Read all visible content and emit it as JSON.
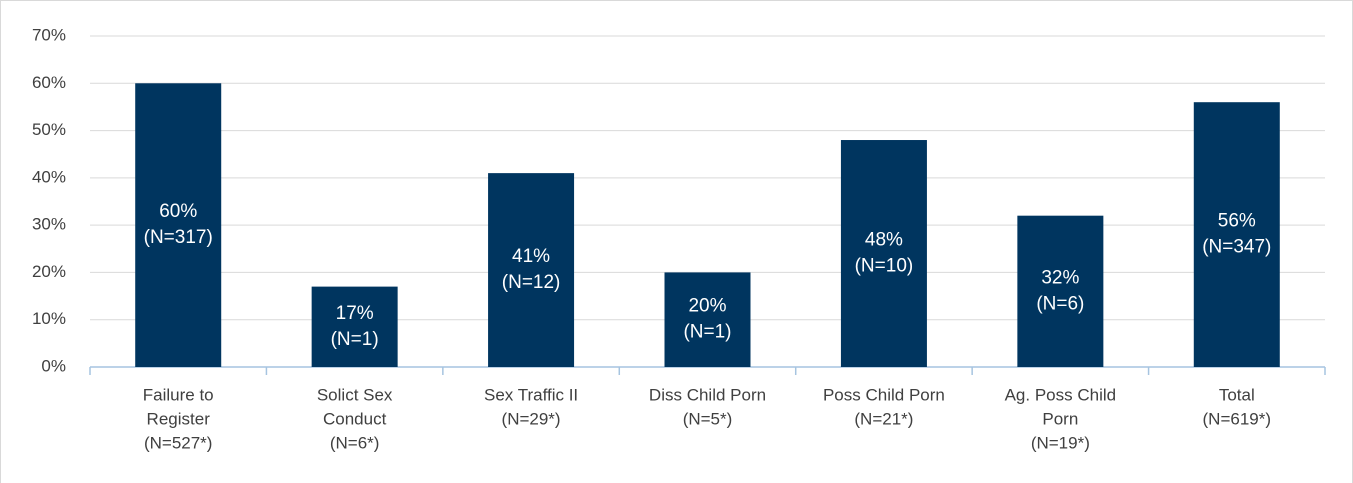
{
  "chart_data": {
    "type": "bar",
    "categories": [
      [
        "Failure to",
        "Register",
        "(N=527*)"
      ],
      [
        "Solict Sex",
        "Conduct",
        "(N=6*)"
      ],
      [
        "Sex Traffic II",
        "(N=29*)"
      ],
      [
        "Diss Child Porn",
        "(N=5*)"
      ],
      [
        "Poss Child Porn",
        "(N=21*)"
      ],
      [
        "Ag. Poss Child",
        "Porn",
        "(N=19*)"
      ],
      [
        "Total",
        "(N=619*)"
      ]
    ],
    "values": [
      60,
      17,
      41,
      20,
      48,
      32,
      56
    ],
    "value_labels": [
      [
        "60%",
        "(N=317)"
      ],
      [
        "17%",
        "(N=1)"
      ],
      [
        "41%",
        "(N=12)"
      ],
      [
        "20%",
        "(N=1)"
      ],
      [
        "48%",
        "(N=10)"
      ],
      [
        "32%",
        "(N=6)"
      ],
      [
        "56%",
        "(N=347)"
      ]
    ],
    "color": "#00355f",
    "ylim": [
      0,
      70
    ],
    "yticks": [
      {
        "value": 0,
        "label": "0%"
      },
      {
        "value": 10,
        "label": "10%"
      },
      {
        "value": 20,
        "label": "20%"
      },
      {
        "value": 30,
        "label": "30%"
      },
      {
        "value": 40,
        "label": "40%"
      },
      {
        "value": 50,
        "label": "50%"
      },
      {
        "value": 60,
        "label": "60%"
      },
      {
        "value": 70,
        "label": "70%"
      }
    ],
    "grid": true
  }
}
